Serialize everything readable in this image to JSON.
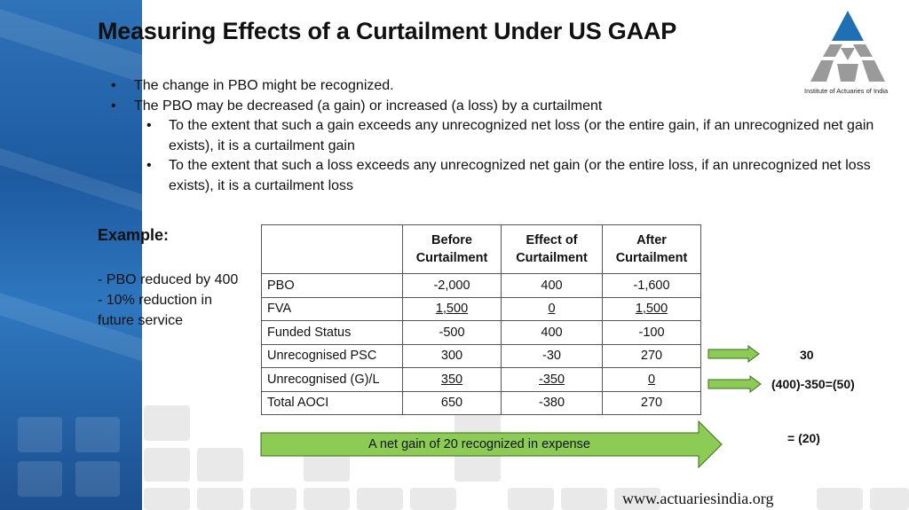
{
  "slide": {
    "title": "Measuring Effects of a Curtailment Under US GAAP",
    "logo_caption": "Institute of Actuaries of India",
    "bullets": [
      "The change in PBO might be recognized.",
      "The PBO may be decreased (a gain) or increased (a loss) by a curtailment"
    ],
    "sub_bullets": [
      "To the extent that such a gain exceeds any unrecognized net loss (or the entire gain, if an unrecognized net gain exists), it is a curtailment gain",
      "To the extent that such a loss exceeds any unrecognized net gain (or the entire loss, if an unrecognized net loss exists), it is a curtailment loss"
    ],
    "example": {
      "heading": "Example:",
      "line1": "- PBO reduced by 400",
      "line2": "- 10% reduction in future service"
    },
    "table": {
      "headers": [
        "",
        "Before Curtailment",
        "Effect of Curtailment",
        "After Curtailment"
      ],
      "rows": [
        {
          "label": "PBO",
          "before": "-2,000",
          "effect": "400",
          "after": "-1,600"
        },
        {
          "label": "FVA",
          "before": "1,500",
          "effect": "0",
          "after": "1,500"
        },
        {
          "label": "Funded Status",
          "before": "-500",
          "effect": "400",
          "after": "-100"
        },
        {
          "label": "Unrecognised PSC",
          "before": "300",
          "effect": "-30",
          "after": "270"
        },
        {
          "label": "Unrecognised (G)/L",
          "before": "350",
          "effect": "-350",
          "after": "0"
        },
        {
          "label": "Total AOCI",
          "before": "650",
          "effect": "-380",
          "after": "270"
        }
      ]
    },
    "notes": {
      "psc_note": "30",
      "gl_note": "(400)-350=(50)",
      "net_note": "= (20)"
    },
    "banner": "A net gain of 20 recognized in expense",
    "website": "www.actuariesindia.org",
    "colors": {
      "accent_blue": "#2a6db5",
      "arrow_green": "#8ccc55",
      "logo_blue": "#1f6fb5",
      "logo_grey": "#9a9a9a"
    }
  }
}
